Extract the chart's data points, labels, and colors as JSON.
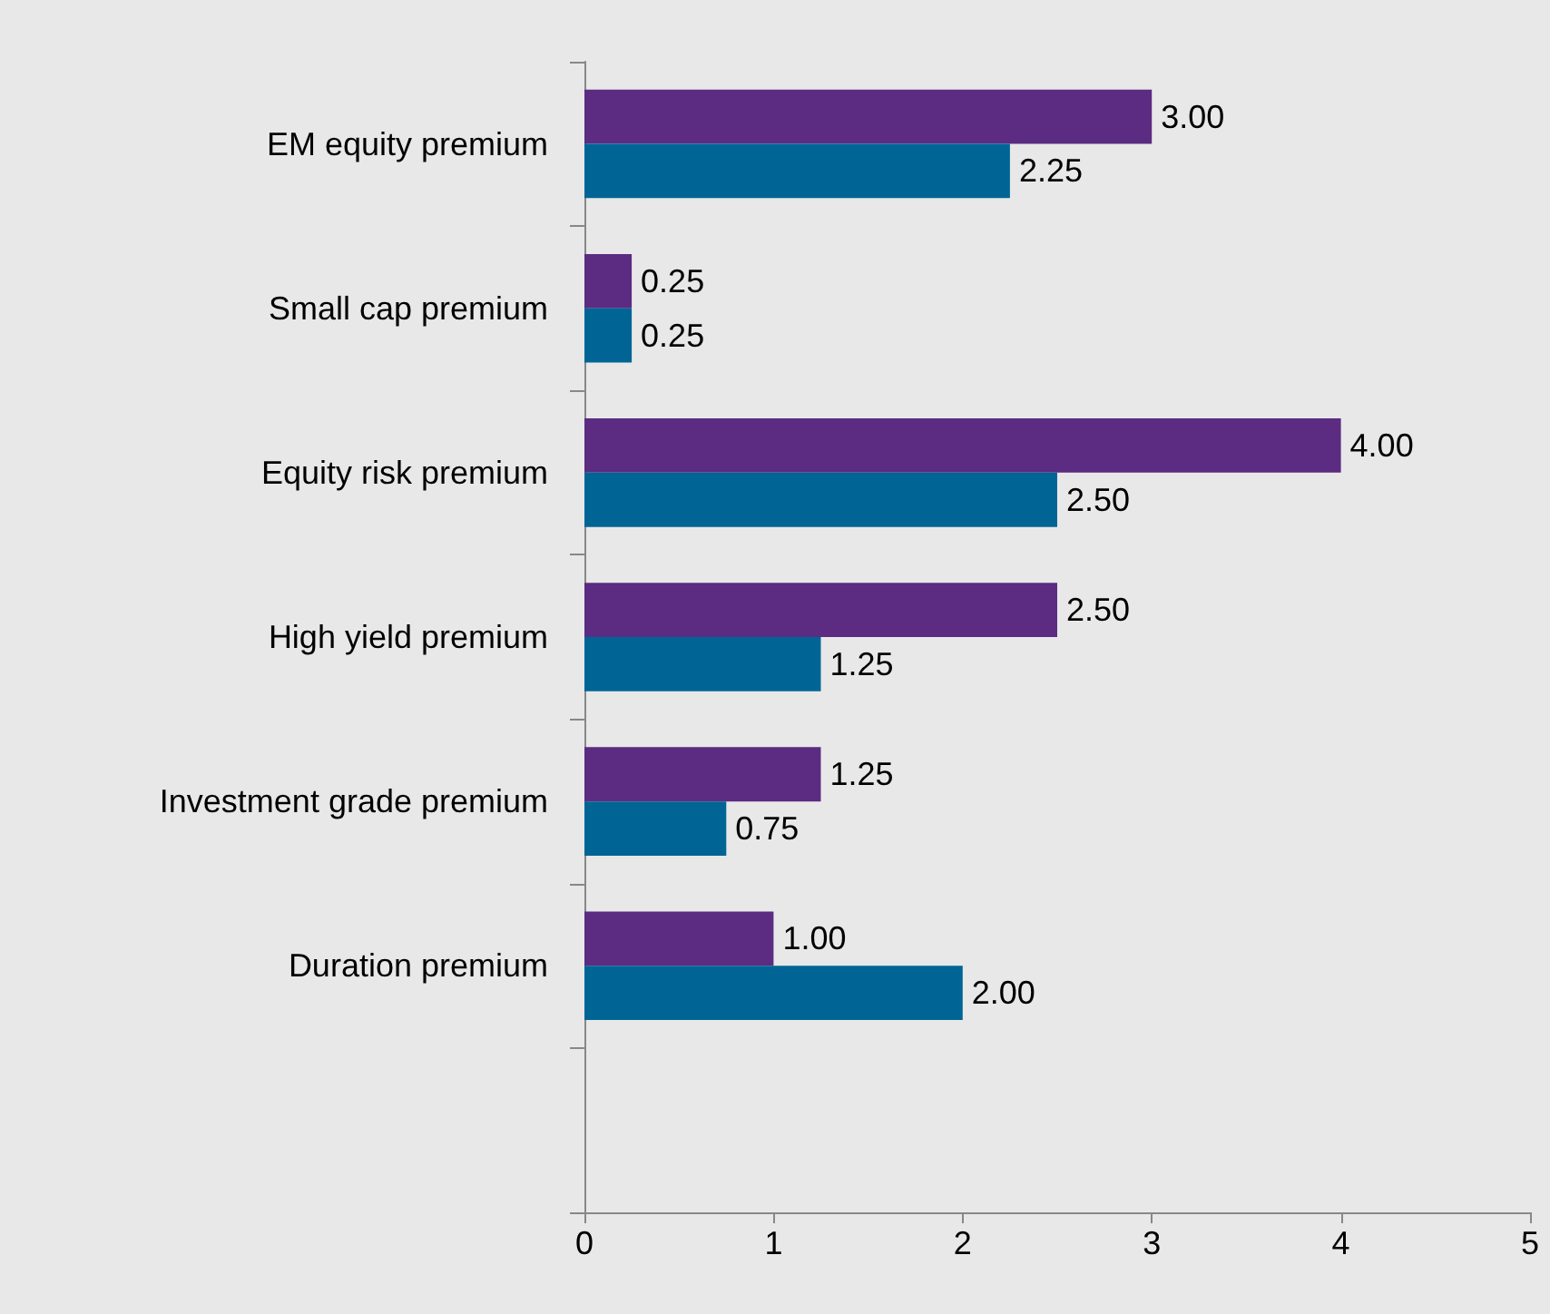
{
  "chart_data": {
    "type": "bar",
    "orientation": "horizontal",
    "categories": [
      "EM equity premium",
      "Small cap premium",
      "Equity risk premium",
      "High yield premium",
      "Investment grade premium",
      "Duration premium",
      null
    ],
    "series": [
      {
        "color": "#5b2c82",
        "values": [
          3.0,
          0.25,
          4.0,
          2.5,
          1.25,
          1.0,
          null
        ],
        "value_labels": [
          "3.00",
          "0.25",
          "4.00",
          "2.50",
          "1.25",
          "1.00",
          null
        ]
      },
      {
        "color": "#006595",
        "values": [
          2.25,
          0.25,
          2.5,
          1.25,
          0.75,
          2.0,
          null
        ],
        "value_labels": [
          "2.25",
          "0.25",
          "2.50",
          "1.25",
          "0.75",
          "2.00",
          null
        ]
      }
    ],
    "xlim": [
      0,
      5
    ],
    "xticks": [
      0,
      1,
      2,
      3,
      4,
      5
    ],
    "grid": false
  }
}
